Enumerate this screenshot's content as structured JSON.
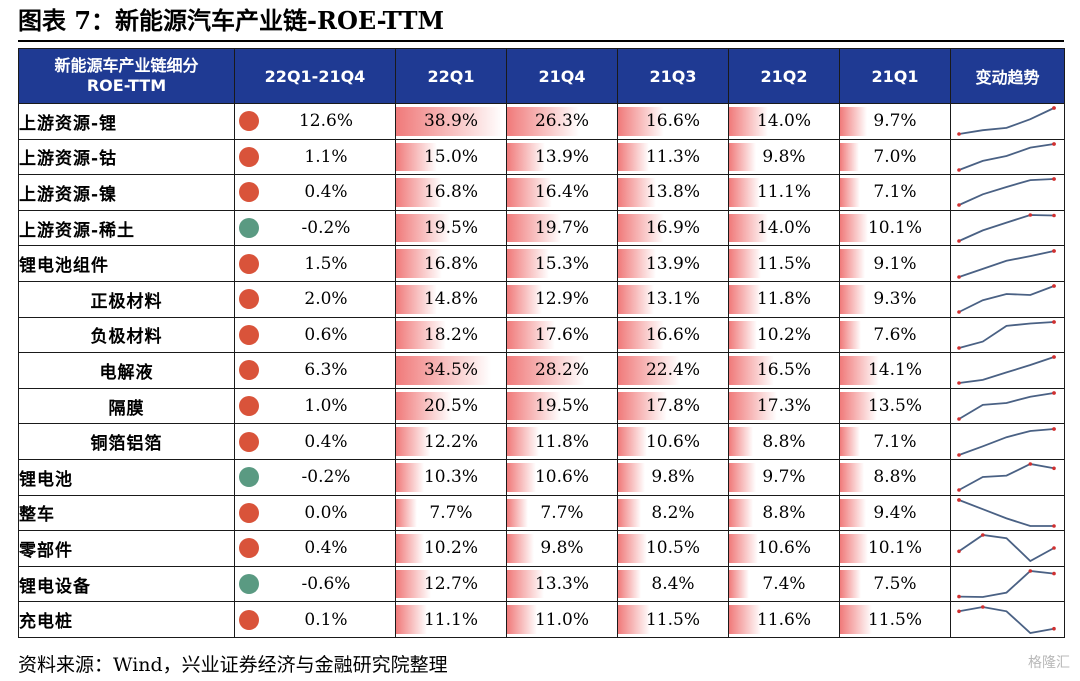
{
  "title": "图表 7：新能源汽车产业链-ROE-TTM",
  "source": "资料来源：Wind，兴业证券经济与金融研究院整理",
  "watermark": "格隆汇",
  "colors": {
    "header_bg": "#1f3a93",
    "dot_up": "#d9533a",
    "dot_down": "#5a9a82",
    "bar": "#f07a7a"
  },
  "chart_data": {
    "type": "table",
    "header": {
      "name_line1": "新能源车产业链细分",
      "name_line2": "ROE-TTM",
      "change": "22Q1-21Q4",
      "periods": [
        "22Q1",
        "21Q4",
        "21Q3",
        "21Q2",
        "21Q1"
      ],
      "trend": "变动趋势"
    },
    "unit": "%",
    "rows": [
      {
        "name": "上游资源-锂",
        "indent": false,
        "change": "12.6%",
        "direction": "up",
        "values": [
          38.9,
          26.3,
          16.6,
          14.0,
          9.7
        ]
      },
      {
        "name": "上游资源-钴",
        "indent": false,
        "change": "1.1%",
        "direction": "up",
        "values": [
          15.0,
          13.9,
          11.3,
          9.8,
          7.0
        ]
      },
      {
        "name": "上游资源-镍",
        "indent": false,
        "change": "0.4%",
        "direction": "up",
        "values": [
          16.8,
          16.4,
          13.8,
          11.1,
          7.1
        ]
      },
      {
        "name": "上游资源-稀土",
        "indent": false,
        "change": "-0.2%",
        "direction": "down",
        "values": [
          19.5,
          19.7,
          16.9,
          14.0,
          10.1
        ]
      },
      {
        "name": "锂电池组件",
        "indent": false,
        "change": "1.5%",
        "direction": "up",
        "values": [
          16.8,
          15.3,
          13.9,
          11.5,
          9.1
        ]
      },
      {
        "name": "正极材料",
        "indent": true,
        "change": "2.0%",
        "direction": "up",
        "values": [
          14.8,
          12.9,
          13.1,
          11.8,
          9.3
        ]
      },
      {
        "name": "负极材料",
        "indent": true,
        "change": "0.6%",
        "direction": "up",
        "values": [
          18.2,
          17.6,
          16.6,
          10.2,
          7.6
        ]
      },
      {
        "name": "电解液",
        "indent": true,
        "change": "6.3%",
        "direction": "up",
        "values": [
          34.5,
          28.2,
          22.4,
          16.5,
          14.1
        ]
      },
      {
        "name": "隔膜",
        "indent": true,
        "change": "1.0%",
        "direction": "up",
        "values": [
          20.5,
          19.5,
          17.8,
          17.3,
          13.5
        ]
      },
      {
        "name": "铜箔铝箔",
        "indent": true,
        "change": "0.4%",
        "direction": "up",
        "values": [
          12.2,
          11.8,
          10.6,
          8.8,
          7.1
        ]
      },
      {
        "name": "锂电池",
        "indent": false,
        "change": "-0.2%",
        "direction": "down",
        "values": [
          10.3,
          10.6,
          9.8,
          9.7,
          8.8
        ]
      },
      {
        "name": "整车",
        "indent": false,
        "change": "0.0%",
        "direction": "up",
        "values": [
          7.7,
          7.7,
          8.2,
          8.8,
          9.4
        ]
      },
      {
        "name": "零部件",
        "indent": false,
        "change": "0.4%",
        "direction": "up",
        "values": [
          10.2,
          9.8,
          10.5,
          10.6,
          10.1
        ]
      },
      {
        "name": "锂电设备",
        "indent": false,
        "change": "-0.6%",
        "direction": "down",
        "values": [
          12.7,
          13.3,
          8.4,
          7.4,
          7.5
        ]
      },
      {
        "name": "充电桩",
        "indent": false,
        "change": "0.1%",
        "direction": "up",
        "values": [
          11.1,
          11.0,
          11.5,
          11.6,
          11.5
        ]
      }
    ]
  }
}
